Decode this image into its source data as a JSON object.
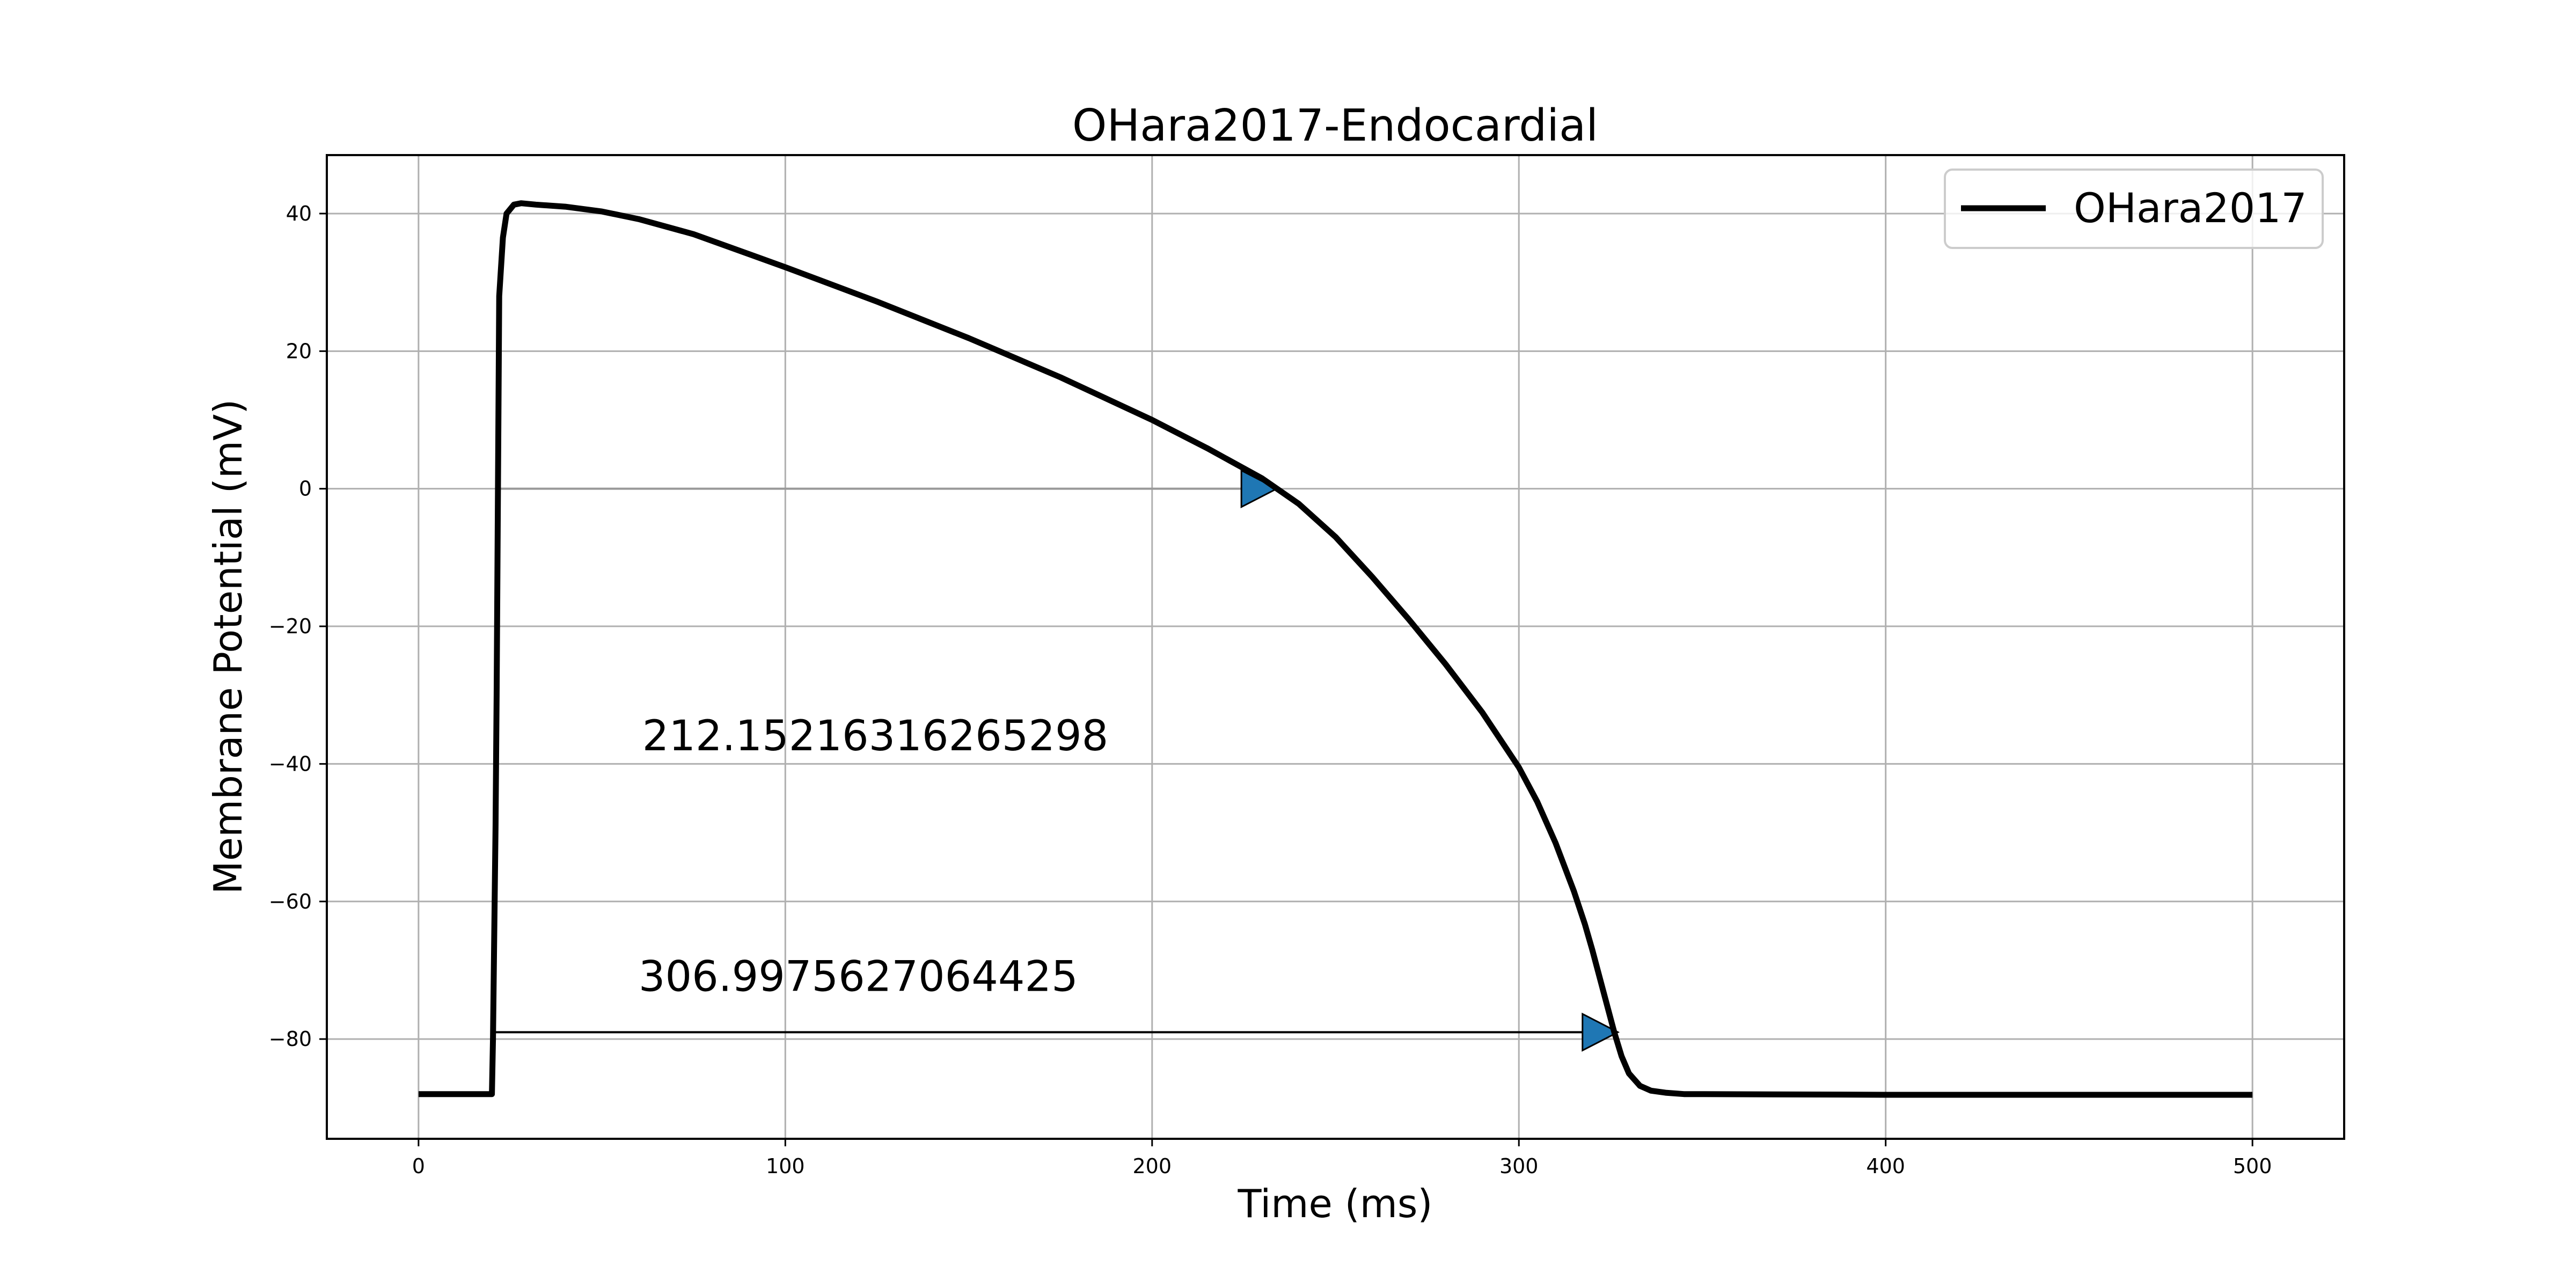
{
  "chart_data": {
    "type": "line",
    "title": "OHara2017-Endocardial",
    "xlabel": "Time (ms)",
    "ylabel": "Membrane Potential (mV)",
    "xlim": [
      -25,
      525
    ],
    "ylim": [
      -94.5,
      48.5
    ],
    "xticks": [
      0,
      100,
      200,
      300,
      400,
      500
    ],
    "yticks": [
      40,
      20,
      0,
      -20,
      -40,
      -60,
      -80
    ],
    "xtick_labels": [
      "0",
      "100",
      "200",
      "300",
      "400",
      "500"
    ],
    "ytick_labels": [
      "40",
      "20",
      "0",
      "−20",
      "−40",
      "−60",
      "−80"
    ],
    "grid": true,
    "legend": {
      "position": "top-right",
      "entries": [
        "OHara2017"
      ]
    },
    "series": [
      {
        "name": "OHara2017",
        "color": "#000000",
        "x": [
          0,
          20,
          20.3,
          21,
          21.3,
          22,
          23,
          24,
          26,
          28,
          32,
          40,
          50,
          60,
          75,
          100,
          125,
          150,
          175,
          200,
          215,
          230,
          240,
          250,
          260,
          270,
          280,
          290,
          300,
          305,
          310,
          315,
          318,
          320,
          323,
          326,
          328,
          330,
          333,
          336,
          340,
          345,
          350,
          400,
          500
        ],
        "y": [
          -88,
          -88,
          -80,
          -49,
          -30,
          28,
          36.5,
          40,
          41.3,
          41.5,
          41.3,
          41,
          40.3,
          39.2,
          37,
          32.2,
          27.2,
          21.9,
          16.2,
          10,
          5.9,
          1.5,
          -2.2,
          -7,
          -12.8,
          -19,
          -25.5,
          -32.5,
          -40.5,
          -45.5,
          -51.5,
          -58.5,
          -63.3,
          -67,
          -73,
          -79,
          -82.5,
          -85,
          -86.8,
          -87.5,
          -87.8,
          -88,
          -88,
          -88.1,
          -88.1
        ]
      }
    ],
    "annotations": [
      {
        "text": "212.15216316265298",
        "x": 61,
        "y": -38
      },
      {
        "text": "306.9975627064425",
        "x": 60,
        "y": -73
      }
    ],
    "arrows": [
      {
        "x_start": 22,
        "x_end": 234,
        "y": 0,
        "color": "#1f77b4",
        "line_color": "#999999"
      },
      {
        "x_start": 20,
        "x_end": 327,
        "y": -79,
        "color": "#1f77b4",
        "line_color": "#000000"
      }
    ]
  }
}
